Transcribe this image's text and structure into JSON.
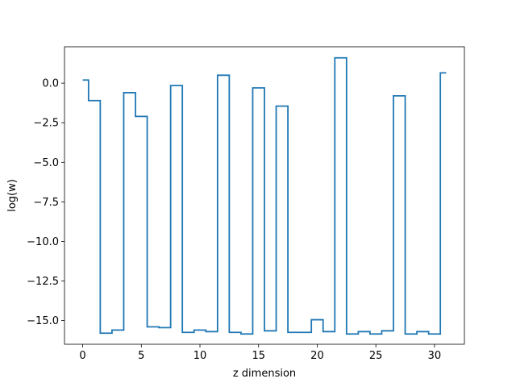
{
  "chart_data": {
    "type": "line",
    "drawstyle": "steps-mid",
    "title": "",
    "xlabel": "z dimension",
    "ylabel": "log(w)",
    "xlim": [
      -1.55,
      32.55
    ],
    "ylim": [
      -16.5,
      2.3
    ],
    "xticks": [
      0,
      5,
      10,
      15,
      20,
      25,
      30
    ],
    "xtick_labels": [
      "0",
      "5",
      "10",
      "15",
      "20",
      "25",
      "30"
    ],
    "yticks": [
      0.0,
      -2.5,
      -5.0,
      -7.5,
      -10.0,
      -12.5,
      -15.0
    ],
    "ytick_labels": [
      "0.0",
      "−2.5",
      "−5.0",
      "−7.5",
      "−10.0",
      "−12.5",
      "−15.0"
    ],
    "grid": false,
    "color": "#1f77b4",
    "series": [
      {
        "x": [
          0,
          1,
          2,
          3,
          4,
          5,
          6,
          7,
          8,
          9,
          10,
          11,
          12,
          13,
          14,
          15,
          16,
          17,
          18,
          19,
          20,
          21,
          22,
          23,
          24,
          25,
          26,
          27,
          28,
          29,
          30,
          31
        ],
        "values": [
          0.2,
          -1.1,
          -15.8,
          -15.6,
          -0.6,
          -2.1,
          -15.4,
          -15.45,
          -0.15,
          -15.75,
          -15.6,
          -15.7,
          0.5,
          -15.75,
          -15.85,
          -0.3,
          -15.65,
          -1.45,
          -15.75,
          -15.75,
          -14.95,
          -15.7,
          1.6,
          -15.85,
          -15.7,
          -15.85,
          -15.65,
          -0.8,
          -15.85,
          -15.7,
          -15.85,
          0.65
        ]
      }
    ]
  }
}
